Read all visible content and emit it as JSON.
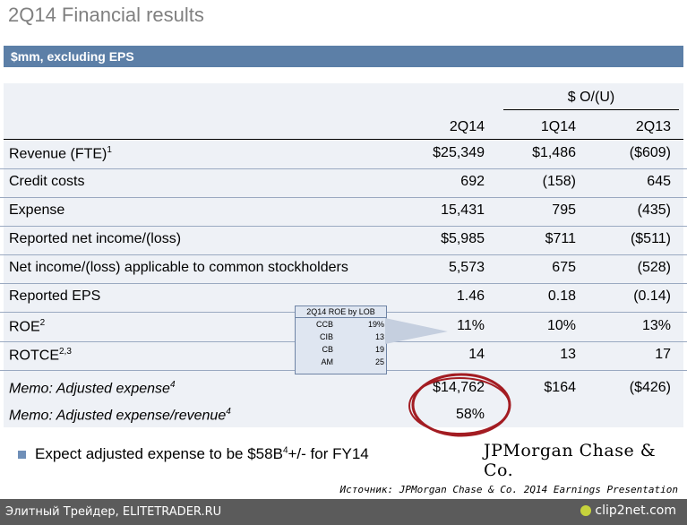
{
  "title": "2Q14 Financial results",
  "banner": "$mm, excluding EPS",
  "headers": {
    "o_u": "$ O/(U)",
    "col1": "2Q14",
    "col2": "1Q14",
    "col3": "2Q13"
  },
  "rows": [
    {
      "label": "Revenue (FTE)",
      "sup": "1",
      "v1": "$25,349",
      "v2": "$1,486",
      "v3": "($609)"
    },
    {
      "label": "Credit costs",
      "sup": "",
      "v1": "692",
      "v2": "(158)",
      "v3": "645"
    },
    {
      "label": "Expense",
      "sup": "",
      "v1": "15,431",
      "v2": "795",
      "v3": "(435)"
    },
    {
      "label": "Reported net income/(loss)",
      "sup": "",
      "v1": "$5,985",
      "v2": "$711",
      "v3": "($511)"
    },
    {
      "label": "Net income/(loss) applicable to common stockholders",
      "sup": "",
      "v1": "5,573",
      "v2": "675",
      "v3": "(528)"
    },
    {
      "label": "Reported EPS",
      "sup": "",
      "v1": "1.46",
      "v2": "0.18",
      "v3": "(0.14)"
    },
    {
      "label": "ROE",
      "sup": "2",
      "v1": "11%",
      "v2": "10%",
      "v3": "13%"
    },
    {
      "label": "ROTCE",
      "sup": "2,3",
      "v1": "14",
      "v2": "13",
      "v3": "17"
    },
    {
      "label": "Memo: Adjusted expense",
      "sup": "4",
      "v1": "$14,762",
      "v2": "$164",
      "v3": "($426)"
    },
    {
      "label": "Memo: Adjusted expense/revenue",
      "sup": "4",
      "v1": "58%",
      "v2": "",
      "v3": ""
    }
  ],
  "mini_table": {
    "title": "2Q14 ROE by LOB",
    "rows": [
      {
        "name": "CCB",
        "value": "19%"
      },
      {
        "name": "CIB",
        "value": "13"
      },
      {
        "name": "CB",
        "value": "19"
      },
      {
        "name": "AM",
        "value": "25"
      }
    ]
  },
  "bullet": {
    "text_a": "Expect adjusted expense to be $58B",
    "sup": "4",
    "text_b": "+/- for FY14"
  },
  "logo": "JPMorgan Chase & Co.",
  "source": "Источник: JPMorgan Chase & Co. 2Q14 Earnings Presentation",
  "footer": {
    "left": "Элитный Трейдер, ELITETRADER.RU",
    "right": "clip2net.com"
  },
  "colors": {
    "banner": "#5c7fa7",
    "table_bg": "#eef1f6",
    "ring": "#a31c22",
    "footer": "#5b5b5b"
  }
}
